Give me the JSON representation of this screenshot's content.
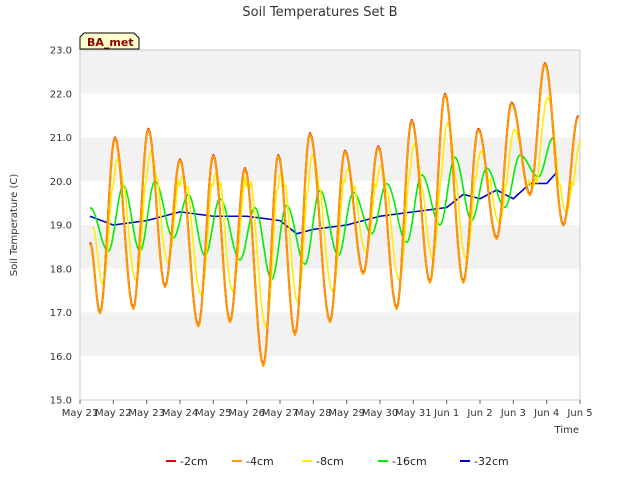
{
  "chart_data": {
    "type": "line",
    "title": "Soil Temperatures Set B",
    "xlabel": "Time",
    "ylabel": "Soil Temperature (C)",
    "station_badge": "BA_met",
    "ylim": [
      15.0,
      23.0
    ],
    "yticks": [
      "15.0",
      "16.0",
      "17.0",
      "18.0",
      "19.0",
      "20.0",
      "21.0",
      "22.0",
      "23.0"
    ],
    "xticks": [
      "May 21",
      "May 22",
      "May 23",
      "May 24",
      "May 25",
      "May 26",
      "May 27",
      "May 28",
      "May 29",
      "May 30",
      "May 31",
      "Jun 1",
      "Jun 2",
      "Jun 3",
      "Jun 4",
      "Jun 5"
    ],
    "xlim_days": [
      0,
      15
    ],
    "grid": "horizontal bands",
    "legend_position": "bottom",
    "daily_extremes_shallow": {
      "day_offset_of_max": [
        1.05,
        2.05,
        3.0,
        4.0,
        4.95,
        5.95,
        6.9,
        7.95,
        8.95,
        9.95,
        10.95,
        11.95,
        12.95,
        13.95,
        14.95
      ],
      "max": [
        21.0,
        21.2,
        20.5,
        20.6,
        20.3,
        20.6,
        21.1,
        20.7,
        20.8,
        21.4,
        22.0,
        21.2,
        21.8,
        22.7,
        21.5
      ],
      "min": [
        17.0,
        17.1,
        17.6,
        16.7,
        16.8,
        15.8,
        16.5,
        16.8,
        17.9,
        17.1,
        17.7,
        17.7,
        18.7,
        19.7,
        19.0
      ],
      "start_value": 18.6,
      "end_value": 18.9,
      "end_day": 14.3
    },
    "series": [
      {
        "name": "-2cm",
        "color": "#dd0000",
        "depth": 2
      },
      {
        "name": "-4cm",
        "color": "#ff9900",
        "depth": 4
      },
      {
        "name": "-8cm",
        "color": "#ffee00",
        "depth": 8
      },
      {
        "name": "-16cm",
        "color": "#00ee00",
        "depth": 16
      },
      {
        "name": "-32cm",
        "color": "#0000cc",
        "depth": 32
      }
    ],
    "deep_32cm": {
      "days": [
        0.3,
        1,
        2,
        3,
        4,
        5,
        6,
        6.5,
        7,
        8,
        9,
        10,
        11,
        11.5,
        12,
        12.5,
        13,
        13.5,
        14,
        14.3
      ],
      "values": [
        19.2,
        19.0,
        19.1,
        19.3,
        19.2,
        19.2,
        19.1,
        18.8,
        18.9,
        19.0,
        19.2,
        19.3,
        19.4,
        19.7,
        19.6,
        19.8,
        19.6,
        19.95,
        19.95,
        20.2
      ]
    },
    "mid_16cm": {
      "start_value": 19.4,
      "day_offset_of_max": [
        1.3,
        2.25,
        3.25,
        4.2,
        5.25,
        6.2,
        7.2,
        8.2,
        9.2,
        10.25,
        11.25,
        12.2,
        13.2,
        14.2
      ],
      "max": [
        19.9,
        20.0,
        19.7,
        19.6,
        19.4,
        19.45,
        19.8,
        19.75,
        19.95,
        20.15,
        20.55,
        20.3,
        20.6,
        21.0
      ],
      "min": [
        18.4,
        18.4,
        18.7,
        18.3,
        18.2,
        17.75,
        18.1,
        18.3,
        18.8,
        18.6,
        19.0,
        19.1,
        19.4,
        20.1
      ],
      "end_value": 20.5
    }
  }
}
